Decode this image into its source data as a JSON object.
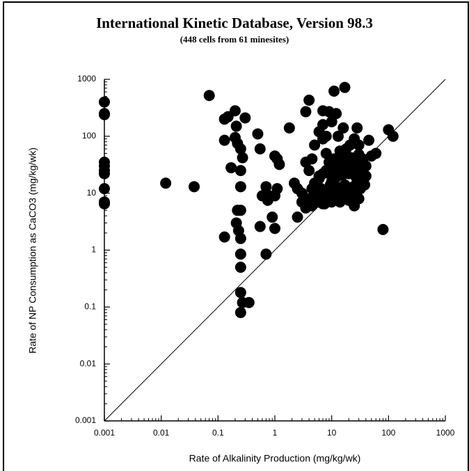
{
  "chart_data": {
    "type": "scatter",
    "title": "International Kinetic Database, Version 98.3",
    "subtitle": "(448 cells from 61 minesites)",
    "x_label": "Rate of Alkalinity Production (mg/kg/wk)",
    "y_label": "Rate of NP Consumption as CaCO3 (mg/kg/wk)",
    "xscale": "log",
    "yscale": "log",
    "xlim": [
      0.001,
      1000
    ],
    "ylim": [
      0.001,
      1000
    ],
    "xticks": [
      0.001,
      0.01,
      0.1,
      1,
      10,
      100,
      1000
    ],
    "yticks": [
      0.001,
      0.01,
      0.1,
      1,
      10,
      100,
      1000
    ],
    "identity_line": true,
    "color": "#000000",
    "x": [
      0.001,
      0.001,
      0.001,
      0.001,
      0.001,
      0.001,
      0.001,
      0.001,
      0.001,
      0.001,
      0.012,
      0.038,
      0.07,
      0.13,
      0.15,
      0.13,
      0.17,
      0.2,
      0.21,
      0.2,
      0.22,
      0.25,
      0.27,
      0.3,
      0.25,
      0.25,
      0.22,
      0.25,
      0.21,
      0.23,
      0.25,
      0.13,
      0.25,
      0.25,
      0.25,
      0.27,
      0.25,
      0.35,
      0.5,
      0.55,
      0.55,
      0.6,
      0.7,
      0.75,
      0.8,
      0.7,
      1,
      1.1,
      1.2,
      1,
      1.1,
      1,
      0.9,
      1.8,
      2.2,
      2.5,
      2.5,
      3,
      3,
      3.5,
      4,
      3.5,
      4,
      4.5,
      3.5,
      4,
      4.5,
      5,
      5,
      6,
      6,
      7,
      7,
      7,
      8,
      8,
      9,
      10,
      11,
      12,
      13,
      17,
      16,
      18,
      15,
      20,
      25,
      28,
      30,
      35,
      40,
      30,
      25,
      45,
      50,
      80,
      100,
      120,
      60,
      5.5,
      6.5,
      7.5,
      8.5,
      9.5,
      11,
      12,
      13,
      14,
      15,
      16,
      17,
      19,
      21,
      23,
      24,
      26,
      28,
      32,
      34,
      36,
      38,
      6,
      7,
      8,
      9,
      10,
      11,
      12,
      13,
      14,
      15,
      16,
      18,
      20,
      22,
      25,
      27,
      30,
      5,
      6,
      7,
      8,
      9,
      10,
      12,
      14,
      16,
      18,
      20,
      22,
      24,
      26,
      9,
      11,
      13,
      15,
      17,
      19,
      22,
      26,
      30,
      35,
      40,
      4.5,
      5.5,
      6.5,
      7.5,
      10,
      12,
      14,
      18,
      21
    ],
    "values": [
      400,
      250,
      240,
      35,
      30,
      25,
      22,
      12,
      7,
      6.5,
      15,
      13,
      520,
      200,
      220,
      85,
      28,
      280,
      150,
      95,
      75,
      60,
      42,
      210,
      25,
      13,
      5,
      5,
      3,
      2.2,
      1.6,
      1.7,
      0.85,
      0.5,
      0.18,
      0.12,
      0.08,
      0.12,
      110,
      60,
      2.6,
      9,
      13,
      7.5,
      9,
      0.85,
      45,
      40,
      32,
      9,
      12,
      2.4,
      3.8,
      140,
      15,
      12,
      3.8,
      10,
      7,
      270,
      430,
      35,
      25,
      40,
      5.5,
      8,
      12,
      70,
      15,
      20,
      120,
      280,
      160,
      90,
      50,
      100,
      270,
      180,
      620,
      250,
      100,
      720,
      140,
      60,
      40,
      30,
      90,
      140,
      70,
      35,
      20,
      8,
      6,
      85,
      45,
      2.3,
      130,
      100,
      50,
      10,
      12,
      9,
      11,
      14,
      9,
      13,
      10,
      12,
      9,
      11,
      14,
      10,
      12,
      9,
      13,
      11,
      15,
      12,
      16,
      18,
      14,
      18,
      22,
      25,
      28,
      20,
      24,
      19,
      26,
      23,
      21,
      27,
      25,
      22,
      28,
      24,
      19,
      26,
      8,
      7,
      6.5,
      7.5,
      8,
      7,
      8.5,
      7,
      9,
      8,
      7.5,
      9,
      8,
      10,
      35,
      40,
      30,
      45,
      38,
      32,
      42,
      36,
      48,
      40,
      30,
      6,
      7,
      8.5,
      6.5,
      16,
      30,
      55,
      45,
      70
    ]
  }
}
